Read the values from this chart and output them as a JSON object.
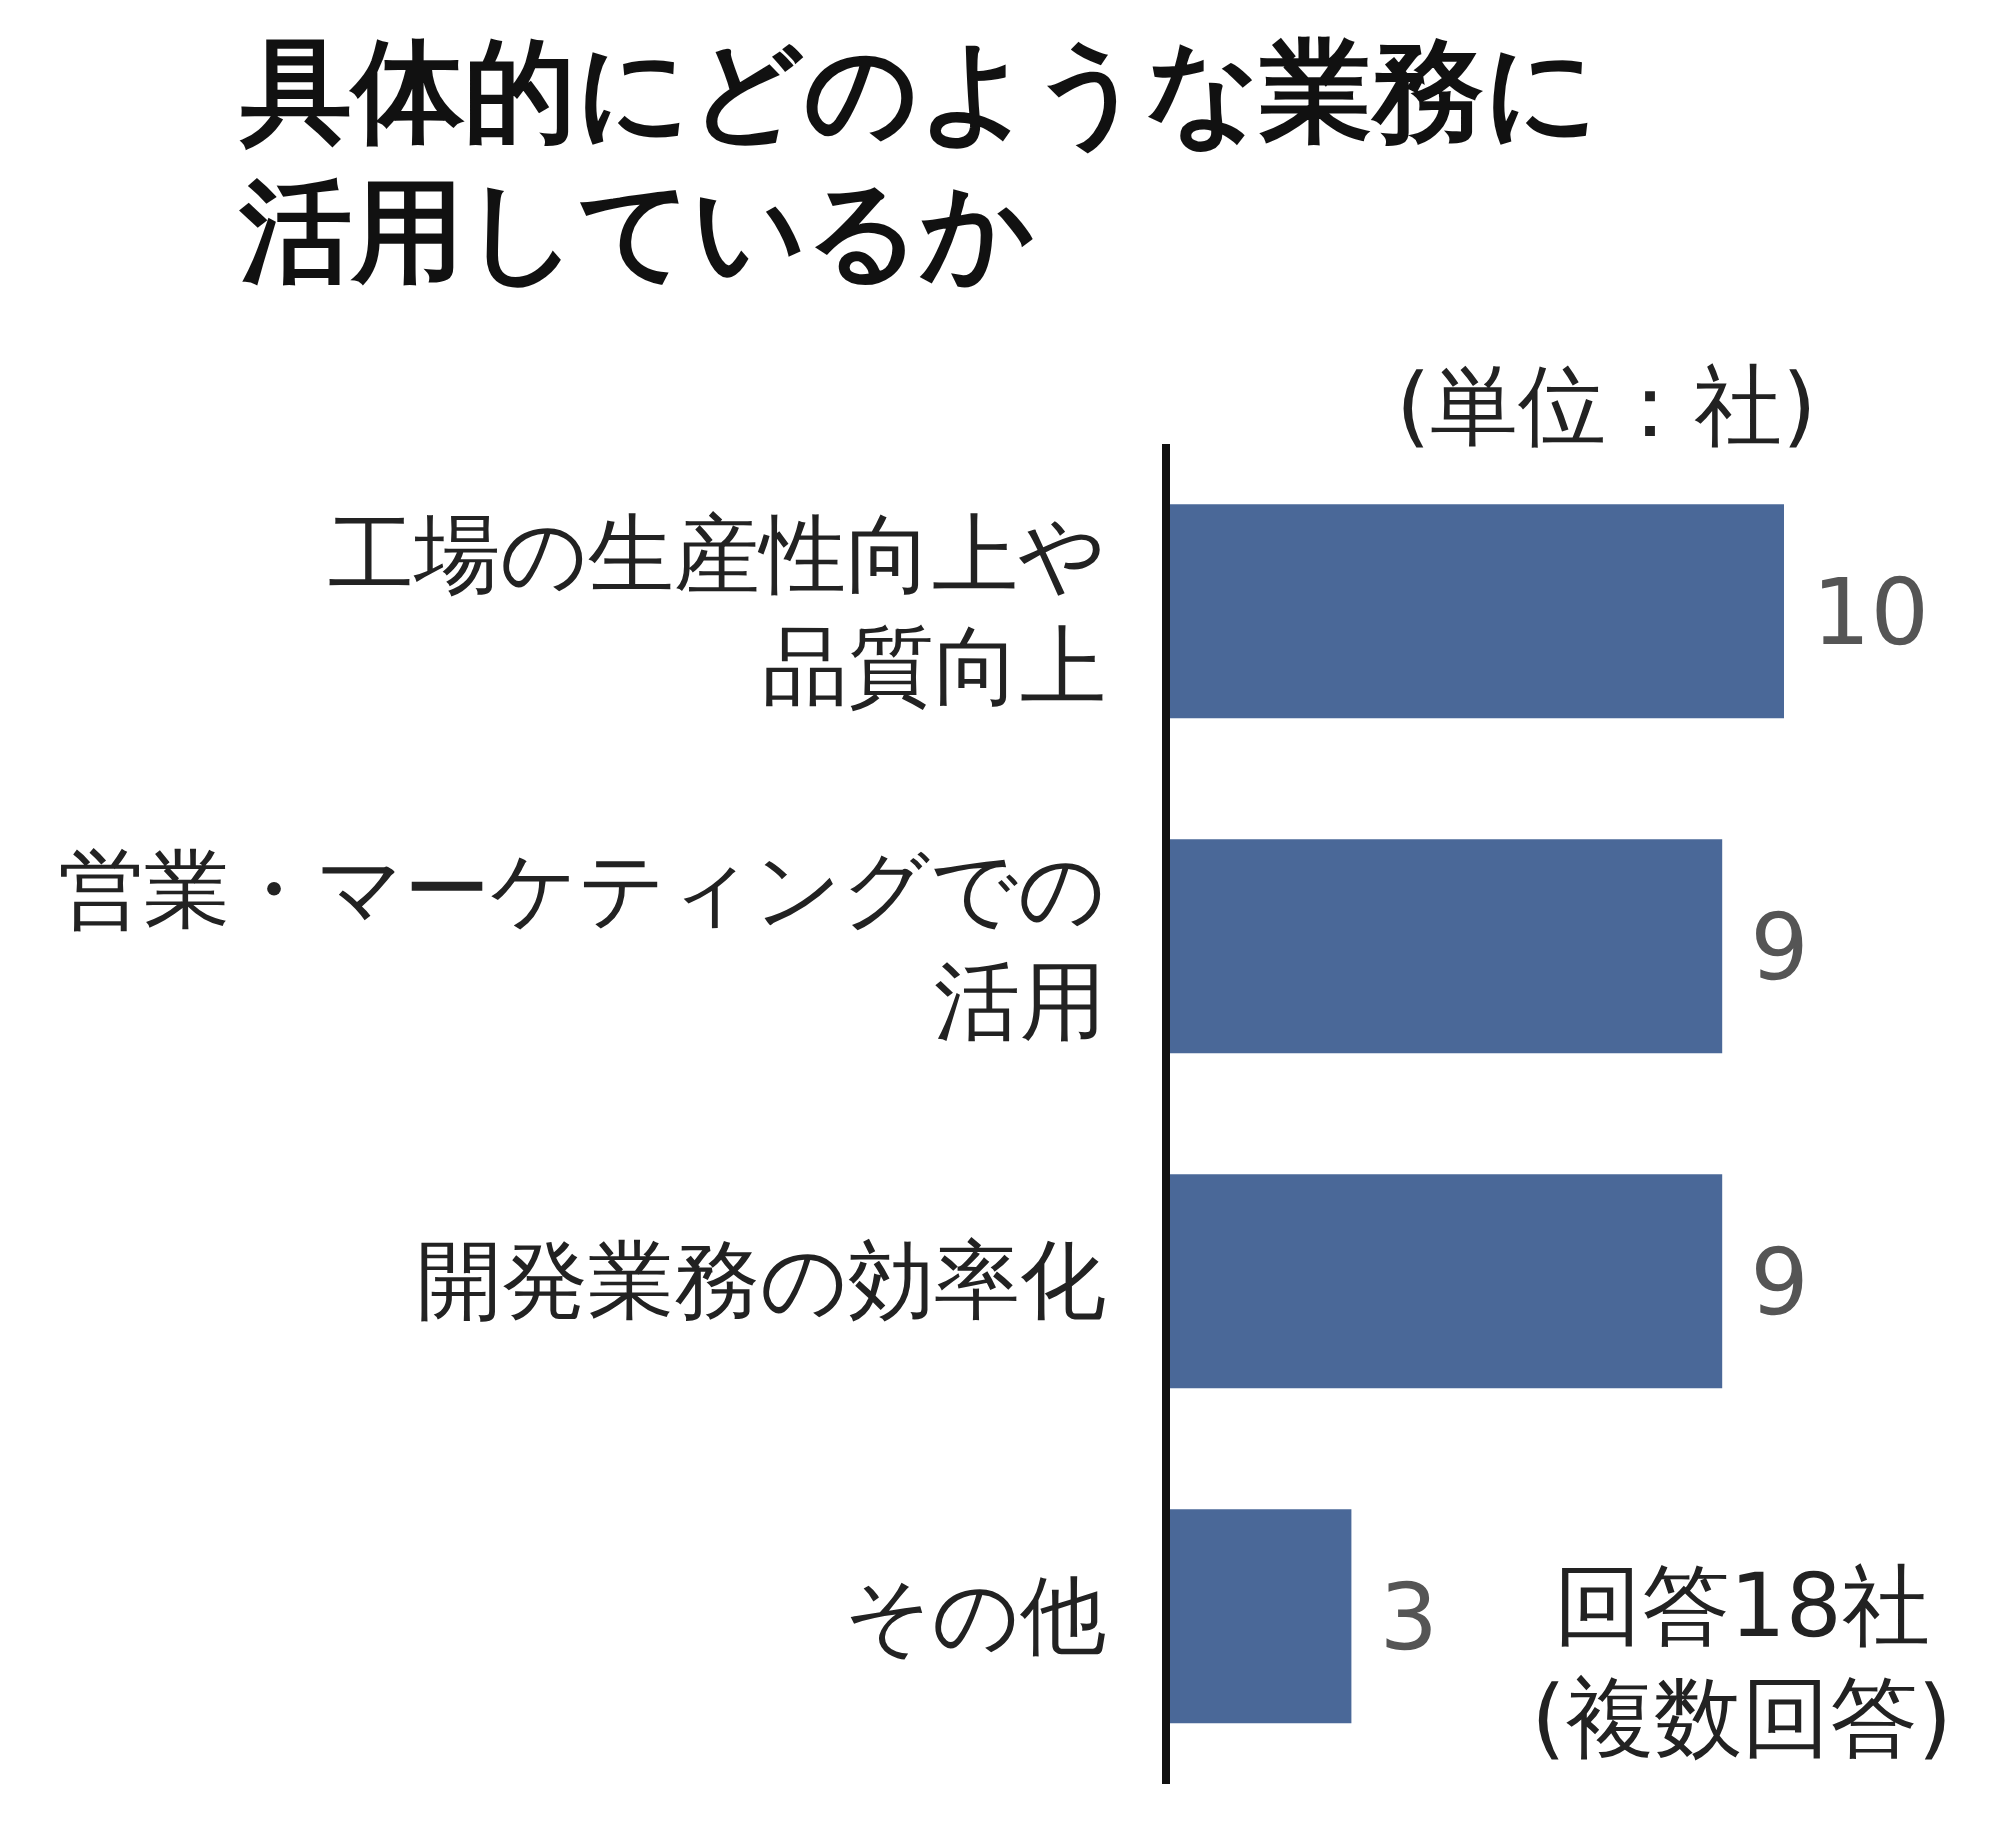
{
  "chart_data": {
    "type": "bar",
    "orientation": "horizontal",
    "title": "具体的にどのような業務に活用しているか",
    "categories": [
      "工場の生産性向上や品質向上",
      "営業・マーケティングでの活用",
      "開発業務の効率化",
      "その他"
    ],
    "values": [
      10,
      9,
      9,
      3
    ],
    "color": "#4a6898",
    "data_labels": true,
    "grid": false,
    "legend": false,
    "annotations": [
      "(単位：社)",
      "回答18社\n(複数回答)"
    ]
  }
}
